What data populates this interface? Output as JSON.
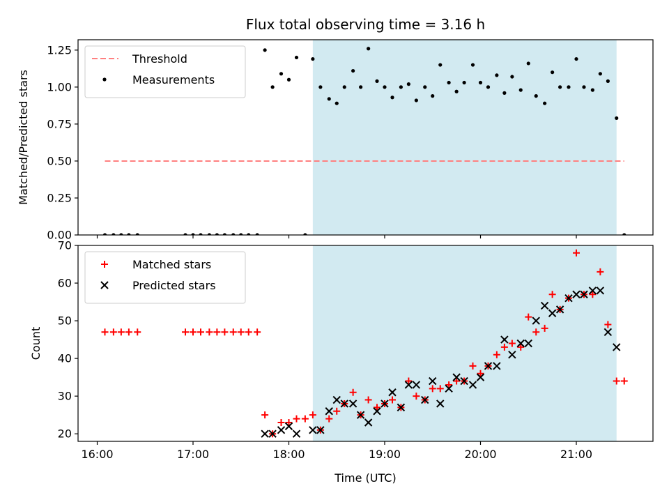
{
  "chart_data": [
    {
      "type": "scatter",
      "title": "Flux total observing time = 3.16 h",
      "xlabel": "",
      "ylabel": "Matched/Predicted stars",
      "xlim": [
        15.8,
        21.8
      ],
      "ylim": [
        0,
        1.32
      ],
      "yticks": [
        0,
        0.25,
        0.5,
        0.75,
        1.0,
        1.25
      ],
      "ytick_labels": [
        "0.00",
        "0.25",
        "0.50",
        "0.75",
        "1.00",
        "1.25"
      ],
      "shaded_region": {
        "x": [
          18.25,
          21.42
        ],
        "color": "#add8e6"
      },
      "legend": {
        "placement": "top-left"
      },
      "series": [
        {
          "name": "Threshold",
          "style": "dashed-line",
          "color": "#ff8080",
          "points": [
            [
              16.08,
              0.5
            ],
            [
              21.5,
              0.5
            ]
          ]
        },
        {
          "name": "Measurements",
          "style": "dot",
          "color": "#000000",
          "points": [
            [
              16.08,
              0
            ],
            [
              16.17,
              0
            ],
            [
              16.25,
              0
            ],
            [
              16.33,
              0
            ],
            [
              16.42,
              0
            ],
            [
              16.92,
              0
            ],
            [
              17.0,
              0
            ],
            [
              17.08,
              0
            ],
            [
              17.17,
              0
            ],
            [
              17.25,
              0
            ],
            [
              17.33,
              0
            ],
            [
              17.42,
              0
            ],
            [
              17.5,
              0
            ],
            [
              17.58,
              0
            ],
            [
              17.67,
              0
            ],
            [
              17.75,
              1.25
            ],
            [
              17.83,
              1.0
            ],
            [
              17.92,
              1.09
            ],
            [
              18.0,
              1.05
            ],
            [
              18.08,
              1.2
            ],
            [
              18.17,
              0
            ],
            [
              18.25,
              1.19
            ],
            [
              18.33,
              1.0
            ],
            [
              18.42,
              0.92
            ],
            [
              18.5,
              0.89
            ],
            [
              18.58,
              1.0
            ],
            [
              18.67,
              1.11
            ],
            [
              18.75,
              1.0
            ],
            [
              18.83,
              1.26
            ],
            [
              18.92,
              1.04
            ],
            [
              19.0,
              1.0
            ],
            [
              19.08,
              0.93
            ],
            [
              19.17,
              1.0
            ],
            [
              19.25,
              1.02
            ],
            [
              19.33,
              0.91
            ],
            [
              19.42,
              1.0
            ],
            [
              19.5,
              0.94
            ],
            [
              19.58,
              1.15
            ],
            [
              19.67,
              1.03
            ],
            [
              19.75,
              0.97
            ],
            [
              19.83,
              1.03
            ],
            [
              19.92,
              1.15
            ],
            [
              20.0,
              1.03
            ],
            [
              20.08,
              1.0
            ],
            [
              20.17,
              1.08
            ],
            [
              20.25,
              0.96
            ],
            [
              20.33,
              1.07
            ],
            [
              20.42,
              0.98
            ],
            [
              20.5,
              1.16
            ],
            [
              20.58,
              0.94
            ],
            [
              20.67,
              0.89
            ],
            [
              20.75,
              1.1
            ],
            [
              20.83,
              1.0
            ],
            [
              20.92,
              1.0
            ],
            [
              21.0,
              1.19
            ],
            [
              21.08,
              1.0
            ],
            [
              21.17,
              0.98
            ],
            [
              21.25,
              1.09
            ],
            [
              21.33,
              1.04
            ],
            [
              21.42,
              0.79
            ],
            [
              21.5,
              0
            ]
          ]
        }
      ]
    },
    {
      "type": "scatter",
      "title": "",
      "xlabel": "Time (UTC)",
      "ylabel": "Count",
      "xlim": [
        15.8,
        21.8
      ],
      "ylim": [
        18,
        70
      ],
      "xticks": [
        16,
        17,
        18,
        19,
        20,
        21
      ],
      "xtick_labels": [
        "16:00",
        "17:00",
        "18:00",
        "19:00",
        "20:00",
        "21:00"
      ],
      "yticks": [
        20,
        30,
        40,
        50,
        60,
        70
      ],
      "ytick_labels": [
        "20",
        "30",
        "40",
        "50",
        "60",
        "70"
      ],
      "shaded_region": {
        "x": [
          18.25,
          21.42
        ],
        "color": "#add8e6"
      },
      "legend": {
        "placement": "top-left"
      },
      "series": [
        {
          "name": "Matched stars",
          "style": "plus",
          "color": "#ff0000",
          "points": [
            [
              16.08,
              47
            ],
            [
              16.17,
              47
            ],
            [
              16.25,
              47
            ],
            [
              16.33,
              47
            ],
            [
              16.42,
              47
            ],
            [
              16.92,
              47
            ],
            [
              17.0,
              47
            ],
            [
              17.08,
              47
            ],
            [
              17.17,
              47
            ],
            [
              17.25,
              47
            ],
            [
              17.33,
              47
            ],
            [
              17.42,
              47
            ],
            [
              17.5,
              47
            ],
            [
              17.58,
              47
            ],
            [
              17.67,
              47
            ],
            [
              17.75,
              25
            ],
            [
              17.83,
              20
            ],
            [
              17.92,
              23
            ],
            [
              18.0,
              23
            ],
            [
              18.08,
              24
            ],
            [
              18.17,
              24
            ],
            [
              18.25,
              25
            ],
            [
              18.33,
              21
            ],
            [
              18.42,
              24
            ],
            [
              18.5,
              26
            ],
            [
              18.58,
              28
            ],
            [
              18.67,
              31
            ],
            [
              18.75,
              25
            ],
            [
              18.83,
              29
            ],
            [
              18.92,
              27
            ],
            [
              19.0,
              28
            ],
            [
              19.08,
              29
            ],
            [
              19.17,
              27
            ],
            [
              19.25,
              34
            ],
            [
              19.33,
              30
            ],
            [
              19.42,
              29
            ],
            [
              19.5,
              32
            ],
            [
              19.58,
              32
            ],
            [
              19.67,
              33
            ],
            [
              19.75,
              34
            ],
            [
              19.83,
              34
            ],
            [
              19.92,
              38
            ],
            [
              20.0,
              36
            ],
            [
              20.08,
              38
            ],
            [
              20.17,
              41
            ],
            [
              20.25,
              43
            ],
            [
              20.33,
              44
            ],
            [
              20.42,
              43
            ],
            [
              20.5,
              51
            ],
            [
              20.58,
              47
            ],
            [
              20.67,
              48
            ],
            [
              20.75,
              57
            ],
            [
              20.83,
              53
            ],
            [
              20.92,
              56
            ],
            [
              21.0,
              68
            ],
            [
              21.08,
              57
            ],
            [
              21.17,
              57
            ],
            [
              21.25,
              63
            ],
            [
              21.33,
              49
            ],
            [
              21.42,
              34
            ],
            [
              21.5,
              34
            ]
          ]
        },
        {
          "name": "Predicted stars",
          "style": "x",
          "color": "#000000",
          "points": [
            [
              17.75,
              20
            ],
            [
              17.83,
              20
            ],
            [
              17.92,
              21
            ],
            [
              18.0,
              22
            ],
            [
              18.08,
              20
            ],
            [
              18.25,
              21
            ],
            [
              18.33,
              21
            ],
            [
              18.42,
              26
            ],
            [
              18.5,
              29
            ],
            [
              18.58,
              28
            ],
            [
              18.67,
              28
            ],
            [
              18.75,
              25
            ],
            [
              18.83,
              23
            ],
            [
              18.92,
              26
            ],
            [
              19.0,
              28
            ],
            [
              19.08,
              31
            ],
            [
              19.17,
              27
            ],
            [
              19.25,
              33
            ],
            [
              19.33,
              33
            ],
            [
              19.42,
              29
            ],
            [
              19.5,
              34
            ],
            [
              19.58,
              28
            ],
            [
              19.67,
              32
            ],
            [
              19.75,
              35
            ],
            [
              19.83,
              34
            ],
            [
              19.92,
              33
            ],
            [
              20.0,
              35
            ],
            [
              20.08,
              38
            ],
            [
              20.17,
              38
            ],
            [
              20.25,
              45
            ],
            [
              20.33,
              41
            ],
            [
              20.42,
              44
            ],
            [
              20.5,
              44
            ],
            [
              20.58,
              50
            ],
            [
              20.67,
              54
            ],
            [
              20.75,
              52
            ],
            [
              20.83,
              53
            ],
            [
              20.92,
              56
            ],
            [
              21.0,
              57
            ],
            [
              21.08,
              57
            ],
            [
              21.17,
              58
            ],
            [
              21.25,
              58
            ],
            [
              21.33,
              47
            ],
            [
              21.42,
              43
            ]
          ]
        }
      ]
    }
  ]
}
